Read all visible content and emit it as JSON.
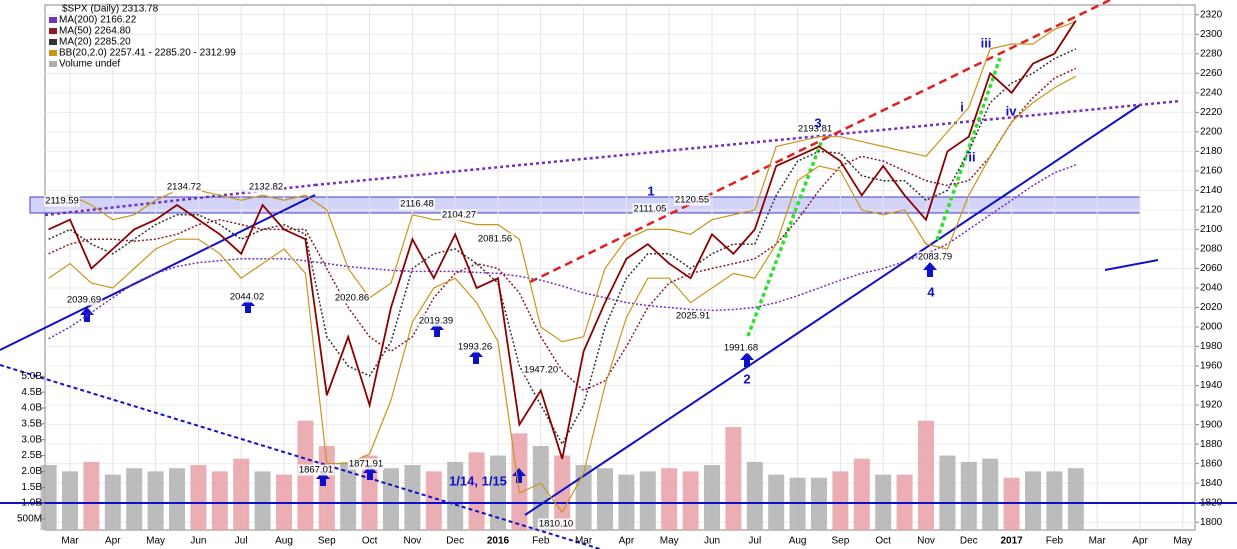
{
  "chart_data": {
    "type": "line",
    "title": "$SPX (Daily) 2313.78",
    "categories": [
      null,
      "Mar",
      null,
      "Apr",
      null,
      "May",
      null,
      "Jun",
      null,
      "Jul",
      null,
      "Aug",
      null,
      "Sep",
      null,
      "Oct",
      null,
      "Nov",
      null,
      "Dec",
      null,
      "2016",
      null,
      "Feb",
      null,
      "Mar",
      null,
      "Apr",
      null,
      "May",
      null,
      "Jun",
      null,
      "Jul",
      null,
      "Aug",
      null,
      "Sep",
      null,
      "Oct",
      null,
      "Nov",
      null,
      "Dec",
      null,
      "2017",
      null,
      "Feb",
      null,
      "Mar",
      null,
      "Apr",
      null,
      "May",
      null
    ],
    "values": [
      2100,
      2110,
      2060,
      2080,
      2100,
      2110,
      2125,
      2110,
      2095,
      2075,
      2125,
      2100,
      2090,
      1930,
      1990,
      1920,
      2020,
      2090,
      2050,
      2095,
      2040,
      2050,
      1900,
      1935,
      1865,
      1975,
      2025,
      2070,
      2085,
      2065,
      2050,
      2095,
      2075,
      2100,
      2165,
      2175,
      2185,
      2170,
      2135,
      2165,
      2135,
      2110,
      2180,
      2195,
      2260,
      2240,
      2270,
      2280,
      2314,
      null,
      null,
      null,
      null,
      null,
      null
    ],
    "color": "#8b0000",
    "series": [
      {
        "name": "MA(200) 2166.22",
        "color": "#7030c0",
        "values": [
          1988,
          2000,
          2015,
          2030,
          2045,
          2055,
          2062,
          2066,
          2068,
          2070,
          2070,
          2070,
          2068,
          2065,
          2062,
          2060,
          2058,
          2057,
          2057,
          2057,
          2056,
          2055,
          2052,
          2048,
          2042,
          2035,
          2030,
          2025,
          2022,
          2020,
          2018,
          2017,
          2018,
          2020,
          2025,
          2032,
          2040,
          2048,
          2055,
          2060,
          2067,
          2075,
          2085,
          2100,
          2115,
          2130,
          2145,
          2158,
          2166,
          null,
          null,
          null,
          null,
          null,
          null
        ]
      },
      {
        "name": "MA(50) 2264.80",
        "color": "#8b1a2a",
        "values": [
          2075,
          2085,
          2090,
          2090,
          2088,
          2090,
          2095,
          2105,
          2110,
          2105,
          2100,
          2100,
          2100,
          2060,
          2020,
          1990,
          1975,
          1990,
          2030,
          2055,
          2065,
          2060,
          2035,
          1990,
          1955,
          1935,
          1945,
          1980,
          2020,
          2045,
          2055,
          2060,
          2065,
          2070,
          2085,
          2110,
          2140,
          2165,
          2175,
          2170,
          2160,
          2150,
          2145,
          2150,
          2175,
          2210,
          2235,
          2255,
          2265,
          null,
          null,
          null,
          null,
          null,
          null
        ]
      },
      {
        "name": "MA(20) 2285.20",
        "color": "#333333",
        "values": [
          2090,
          2100,
          2085,
          2075,
          2090,
          2105,
          2115,
          2115,
          2105,
          2090,
          2100,
          2105,
          2095,
          1990,
          1960,
          1950,
          1985,
          2060,
          2075,
          2080,
          2065,
          2045,
          1960,
          1920,
          1880,
          1920,
          2000,
          2050,
          2075,
          2075,
          2060,
          2075,
          2085,
          2085,
          2135,
          2170,
          2180,
          2178,
          2155,
          2150,
          2150,
          2130,
          2140,
          2180,
          2230,
          2250,
          2260,
          2275,
          2285,
          null,
          null,
          null,
          null,
          null,
          null
        ]
      },
      {
        "name": "BB(20,2.0) 2257.41 - 2285.20 - 2312.99",
        "color": "#c8961e",
        "upper": [
          2130,
          2135,
          2125,
          2110,
          2115,
          2130,
          2140,
          2140,
          2135,
          2130,
          2135,
          2130,
          2135,
          2120,
          2060,
          2030,
          2045,
          2115,
          2110,
          2110,
          2105,
          2105,
          2090,
          2000,
          1985,
          1990,
          2060,
          2090,
          2100,
          2100,
          2095,
          2110,
          2115,
          2120,
          2185,
          2190,
          2195,
          2195,
          2190,
          2185,
          2180,
          2175,
          2200,
          2225,
          2285,
          2290,
          2290,
          2305,
          2313,
          null,
          null,
          null,
          null,
          null,
          null
        ],
        "lower": [
          2050,
          2065,
          2045,
          2040,
          2060,
          2080,
          2090,
          2090,
          2075,
          2050,
          2065,
          2080,
          2055,
          1860,
          1860,
          1870,
          1925,
          2005,
          2040,
          2050,
          2025,
          1985,
          1830,
          1840,
          1810,
          1850,
          1940,
          2010,
          2050,
          2050,
          2025,
          2040,
          2055,
          2050,
          2085,
          2150,
          2165,
          2160,
          2120,
          2115,
          2120,
          2085,
          2080,
          2135,
          2175,
          2210,
          2230,
          2245,
          2257,
          null,
          null,
          null,
          null,
          null,
          null
        ]
      }
    ],
    "volume": {
      "name": "Volume undef",
      "axis": "y2",
      "color": "#b0b0b0",
      "values": [
        2.2,
        2.0,
        2.3,
        1.9,
        2.1,
        2.0,
        2.1,
        2.2,
        2.0,
        2.4,
        2.0,
        1.9,
        3.6,
        2.8,
        2.3,
        2.5,
        2.1,
        2.2,
        2.0,
        2.3,
        2.6,
        2.5,
        3.2,
        2.8,
        2.5,
        2.2,
        2.1,
        1.9,
        2.0,
        2.1,
        2.0,
        2.2,
        3.4,
        2.3,
        1.9,
        1.8,
        1.8,
        2.0,
        2.4,
        1.9,
        1.9,
        3.6,
        2.5,
        2.3,
        2.4,
        1.8,
        2.0,
        2.0,
        2.1,
        null,
        null,
        null,
        null,
        null,
        null
      ]
    },
    "ylim": [
      1792,
      2330
    ],
    "yticks": [
      1800,
      1820,
      1840,
      1860,
      1880,
      1900,
      1920,
      1940,
      1960,
      1980,
      2000,
      2020,
      2040,
      2060,
      2080,
      2100,
      2120,
      2140,
      2160,
      2180,
      2200,
      2220,
      2240,
      2260,
      2280,
      2300,
      2320
    ],
    "y2lim": [
      0.15,
      5.2
    ],
    "y2ticks": [
      {
        "value": 0.5,
        "label": "500M"
      },
      {
        "value": 1.0,
        "label": "1.0B"
      },
      {
        "value": 1.5,
        "label": "1.5B"
      },
      {
        "value": 2.0,
        "label": "2.0B"
      },
      {
        "value": 2.5,
        "label": "2.5B"
      },
      {
        "value": 3.0,
        "label": "3.0B"
      },
      {
        "value": 3.5,
        "label": "3.5B"
      },
      {
        "value": 4.0,
        "label": "4.0B"
      },
      {
        "value": 4.5,
        "label": "4.5B"
      },
      {
        "value": 5.0,
        "label": "5.0B"
      }
    ],
    "grid": true,
    "legend": "top-left",
    "annotations": [
      "2119.59",
      "2134.72",
      "2132.82",
      "2039.69",
      "2044.02",
      "2020.86",
      "2116.48",
      "2104.27",
      "2081.56",
      "2019.39",
      "1993.26",
      "1947.20",
      "1867.01",
      "1871.91",
      "1810.10",
      "2111.05",
      "2120.55",
      "2025.91",
      "1991.68",
      "2193.81",
      "2083.79"
    ],
    "wave_labels": [
      "1",
      "2",
      "3",
      "4",
      "i",
      "ii",
      "iii",
      "iv",
      "1/14, 1/15"
    ]
  }
}
